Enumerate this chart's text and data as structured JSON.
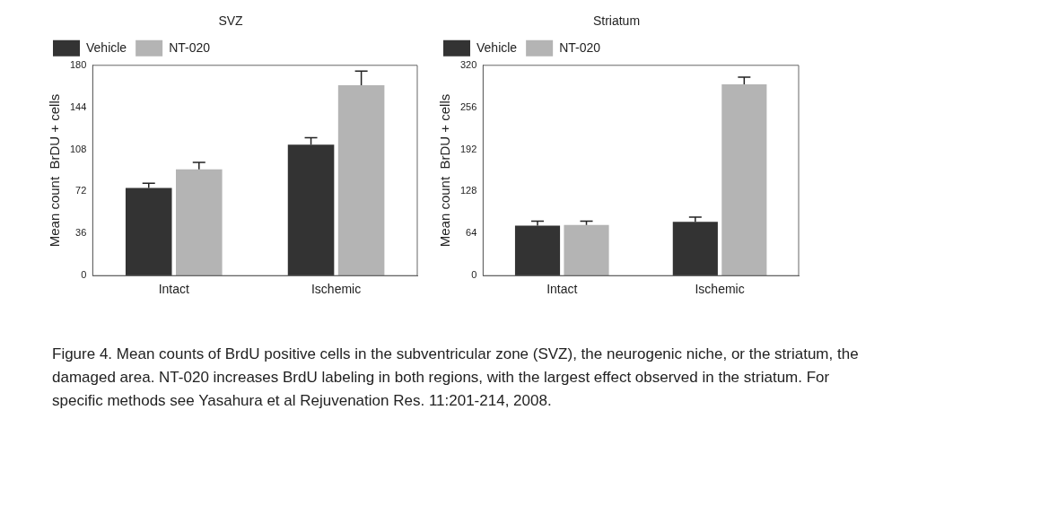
{
  "chart_data": [
    {
      "type": "bar",
      "title": "SVZ",
      "ylabel": "Mean count  BrDU + cells",
      "categories": [
        "Intact",
        "Ischemic"
      ],
      "series": [
        {
          "name": "Vehicle",
          "color": "#333333",
          "values": [
            75,
            112
          ],
          "errors": [
            4,
            6
          ]
        },
        {
          "name": "NT-020",
          "color": "#b4b4b4",
          "values": [
            91,
            163
          ],
          "errors": [
            6,
            12
          ]
        }
      ],
      "ylim": [
        0,
        180
      ],
      "yticks": [
        0,
        36,
        72,
        108,
        144,
        180
      ],
      "grid": false,
      "legend": "top left",
      "annotations": [
        "Figure 4.  Mean counts of BrdU positive cells in the subventricular zone (SVZ), the neurogenic niche, or the striatum, the damaged area.  NT-020 increases BrdU labeling in both regions, with the largest effect observed in the striatum.  For specific methods see Yasahura et al Rejuvenation Res. 11:201-214, 2008."
      ]
    },
    {
      "type": "bar",
      "title": "Striatum",
      "ylabel": "Mean count  BrDU + cells",
      "categories": [
        "Intact",
        "Ischemic"
      ],
      "series": [
        {
          "name": "Vehicle",
          "color": "#333333",
          "values": [
            76,
            82
          ],
          "errors": [
            7,
            7
          ]
        },
        {
          "name": "NT-020",
          "color": "#b4b4b4",
          "values": [
            77,
            291
          ],
          "errors": [
            6,
            11
          ]
        }
      ],
      "ylim": [
        0,
        320
      ],
      "yticks": [
        0,
        64,
        128,
        192,
        256,
        320
      ],
      "grid": false,
      "legend": "top left"
    }
  ]
}
